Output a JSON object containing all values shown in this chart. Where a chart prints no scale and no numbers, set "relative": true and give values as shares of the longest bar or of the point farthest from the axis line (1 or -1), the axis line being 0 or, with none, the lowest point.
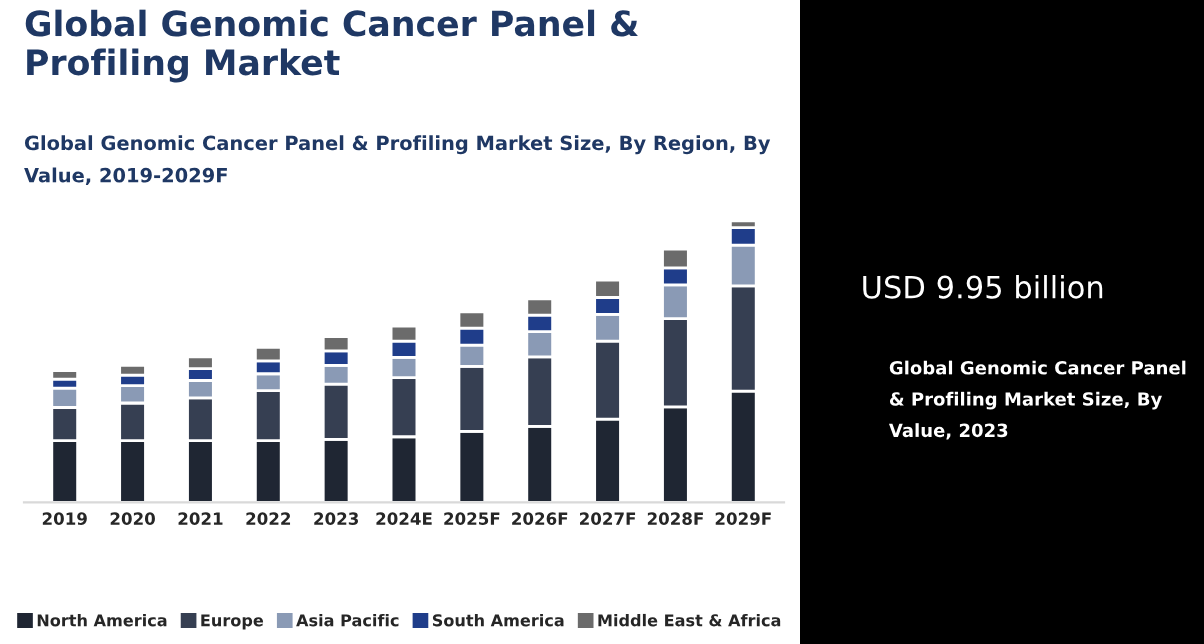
{
  "chart_data": [
    {
      "type": "bar",
      "title": "Global Genomic Cancer Panel & Profiling Market",
      "subtitle": "Global Genomic Cancer Panel & Profiling Market Size, By Region, By Value, 2019-2029F",
      "relative": true,
      "stacked": true,
      "legend": "bottom",
      "categories": [
        "2019",
        "2020",
        "2021",
        "2022",
        "2023",
        "2024E",
        "2025F",
        "2026F",
        "2027F",
        "2028F",
        "2029F"
      ],
      "series": [
        {
          "name": "North America",
          "color": "#1f2633",
          "values": [
            0.219,
            0.219,
            0.219,
            0.219,
            0.224,
            0.233,
            0.252,
            0.27,
            0.296,
            0.339,
            0.395
          ]
        },
        {
          "name": "Europe",
          "color": "#363f52",
          "values": [
            0.118,
            0.134,
            0.152,
            0.178,
            0.196,
            0.21,
            0.231,
            0.247,
            0.277,
            0.314,
            0.374
          ]
        },
        {
          "name": "Asia Pacific",
          "color": "#8a9ab5",
          "values": [
            0.069,
            0.062,
            0.062,
            0.06,
            0.067,
            0.072,
            0.076,
            0.09,
            0.095,
            0.12,
            0.145
          ]
        },
        {
          "name": "South America",
          "color": "#1f3d8a",
          "values": [
            0.032,
            0.037,
            0.042,
            0.046,
            0.051,
            0.058,
            0.06,
            0.058,
            0.06,
            0.06,
            0.062
          ]
        },
        {
          "name": "Middle East & Africa",
          "color": "#6b6b6b",
          "values": [
            0.03,
            0.035,
            0.042,
            0.048,
            0.051,
            0.053,
            0.058,
            0.058,
            0.062,
            0.067,
            0.024
          ]
        }
      ]
    },
    {
      "type": "other",
      "title": "USD 9.95 billion",
      "subtitle": "Global Genomic Cancer Panel & Profiling Market Size, By Value, 2023"
    }
  ]
}
